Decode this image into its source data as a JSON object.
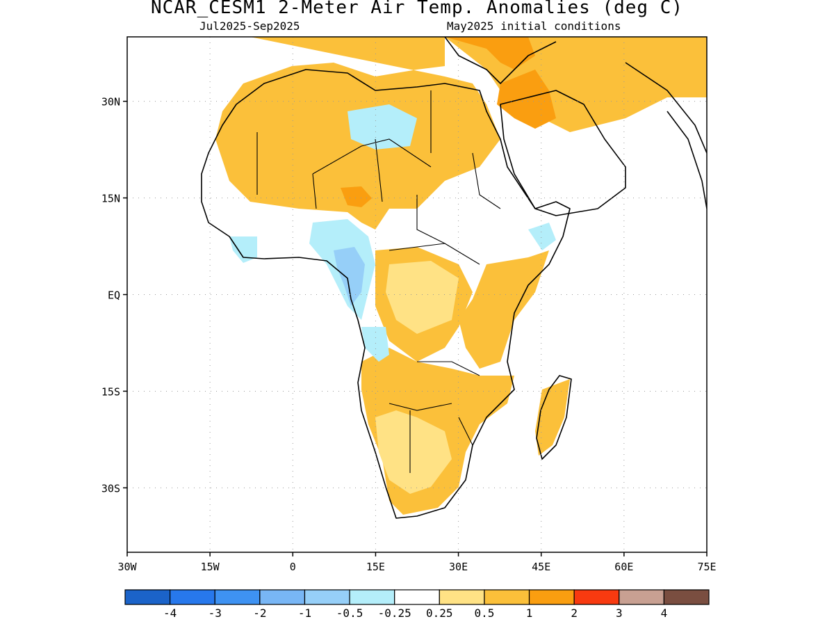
{
  "title": "NCAR_CESM1 2-Meter Air Temp. Anomalies (deg C)",
  "subtitle_left": "Jul2025-Sep2025",
  "subtitle_right": "May2025 initial conditions",
  "map": {
    "lon_range": [
      -30,
      75
    ],
    "lat_range": [
      -40,
      40
    ],
    "lon_ticks": [
      {
        "value": -30,
        "label": "30W"
      },
      {
        "value": -15,
        "label": "15W"
      },
      {
        "value": 0,
        "label": "0"
      },
      {
        "value": 15,
        "label": "15E"
      },
      {
        "value": 30,
        "label": "30E"
      },
      {
        "value": 45,
        "label": "45E"
      },
      {
        "value": 60,
        "label": "60E"
      },
      {
        "value": 75,
        "label": "75E"
      }
    ],
    "lat_ticks": [
      {
        "value": 30,
        "label": "30N"
      },
      {
        "value": 15,
        "label": "15N"
      },
      {
        "value": 0,
        "label": "EQ"
      },
      {
        "value": -15,
        "label": "15S"
      },
      {
        "value": -30,
        "label": "30S"
      }
    ],
    "grid": "dotted",
    "coastline_color": "#000000"
  },
  "colorbar": {
    "colors": [
      "#1b63c9",
      "#2778ec",
      "#3e92f2",
      "#78b6f5",
      "#96cff8",
      "#b4eefa",
      "#ffffff",
      "#ffe285",
      "#fbc03a",
      "#fa9e10",
      "#f83a10",
      "#c8a092",
      "#7a4e40"
    ],
    "labels": [
      "-4",
      "-3",
      "-2",
      "-1",
      "-0.5",
      "-0.25",
      "0.25",
      "0.5",
      "1",
      "2",
      "3",
      "4"
    ]
  },
  "anomaly_colors": {
    "warm_0.25": "#ffe285",
    "warm_0.5": "#fbc03a",
    "warm_1": "#fa9e10",
    "warm_2": "#f83a10",
    "cool_0.25": "#b4eefa",
    "cool_0.5": "#96cff8",
    "cool_1": "#78b6f5"
  }
}
